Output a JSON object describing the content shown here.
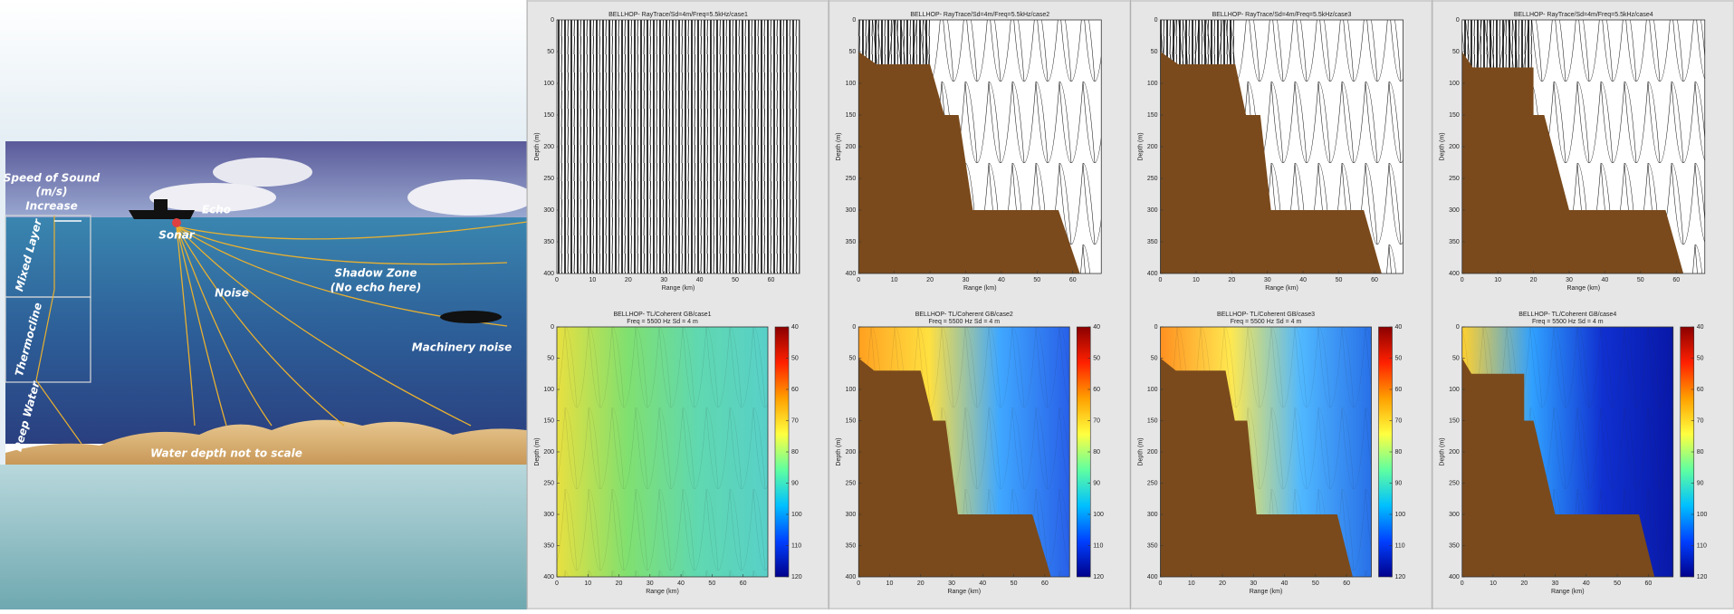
{
  "illustration": {
    "labels": [
      "Speed of Sound",
      "(m/s)",
      "Increase",
      "Sonar",
      "Echo",
      "Noise",
      "Shadow Zone",
      "(No echo here)",
      "Machinery noise",
      "Mixed Layer",
      "Thermocline",
      "Deep Water",
      "Water depth not to scale"
    ]
  },
  "depth_axis": {
    "label": "Depth (m)",
    "lim": [
      0,
      400
    ],
    "ticks": [
      0,
      50,
      100,
      150,
      200,
      250,
      300,
      350,
      400
    ]
  },
  "range_axis": {
    "label": "Range (km)",
    "lim": [
      0,
      68
    ],
    "ticks": [
      0,
      10,
      20,
      30,
      40,
      50,
      60
    ]
  },
  "colorbar": {
    "lim": [
      40,
      120
    ],
    "ticks": [
      40,
      50,
      60,
      70,
      80,
      90,
      100,
      110,
      120
    ],
    "colors": [
      "#8b0000",
      "#ff2000",
      "#ffa000",
      "#ffff40",
      "#60ffa0",
      "#00c0ff",
      "#0040ff",
      "#00008b"
    ]
  },
  "panels": [
    {
      "kind": "raytrace",
      "title": "BELLHOP- RayTrace/Sd=4m/Freq=5.5kHz/case1"
    },
    {
      "kind": "raytrace",
      "title": "BELLHOP- RayTrace/Sd=4m/Freq=5.5kHz/case2",
      "bathymetry": {
        "range": [
          0,
          5,
          20,
          24,
          28,
          32,
          56,
          62,
          68,
          68,
          0
        ],
        "depth": [
          50,
          70,
          70,
          150,
          150,
          300,
          300,
          400,
          400,
          400,
          400
        ]
      }
    },
    {
      "kind": "raytrace",
      "title": "BELLHOP- RayTrace/Sd=4m/Freq=5.5kHz/case3",
      "bathymetry": {
        "range": [
          0,
          5,
          21,
          24,
          28,
          31,
          57,
          62,
          68,
          68,
          0
        ],
        "depth": [
          50,
          70,
          70,
          150,
          150,
          300,
          300,
          400,
          400,
          400,
          400
        ]
      }
    },
    {
      "kind": "raytrace",
      "title": "BELLHOP- RayTrace/Sd=4m/Freq=5.5kHz/case4",
      "bathymetry": {
        "range": [
          0,
          3,
          20,
          20,
          23,
          30,
          57,
          62,
          68,
          68,
          0
        ],
        "depth": [
          50,
          75,
          75,
          150,
          150,
          300,
          300,
          400,
          400,
          400,
          400
        ]
      }
    },
    {
      "kind": "tl",
      "title": "BELLHOP- TL/Coherent GB/case1",
      "subtitle": "Freq = 5500 Hz    Sd = 4 m",
      "colors": [
        "#e8e040",
        "#80e070",
        "#60d8b0",
        "#58d0c8"
      ]
    },
    {
      "kind": "tl",
      "title": "BELLHOP- TL/Coherent GB/case2",
      "subtitle": "Freq = 5500 Hz    Sd = 4 m",
      "colors": [
        "#ffa020",
        "#ffe040",
        "#40a8ff",
        "#2860e8"
      ],
      "bathymetry": {
        "range": [
          0,
          5,
          20,
          24,
          28,
          32,
          56,
          62,
          68,
          68,
          0
        ],
        "depth": [
          50,
          70,
          70,
          150,
          150,
          300,
          300,
          400,
          400,
          400,
          400
        ]
      }
    },
    {
      "kind": "tl",
      "title": "BELLHOP- TL/Coherent GB/case3",
      "subtitle": "Freq = 5500 Hz    Sd = 4 m",
      "colors": [
        "#ff9020",
        "#ffe850",
        "#50b8ff",
        "#2870e8"
      ],
      "bathymetry": {
        "range": [
          0,
          5,
          21,
          24,
          28,
          31,
          57,
          62,
          68,
          68,
          0
        ],
        "depth": [
          50,
          70,
          70,
          150,
          150,
          300,
          300,
          400,
          400,
          400,
          400
        ]
      }
    },
    {
      "kind": "tl",
      "title": "BELLHOP- TL/Coherent GB/case4",
      "subtitle": "Freq = 5500 Hz    Sd = 4 m",
      "colors": [
        "#ffd030",
        "#30a0ff",
        "#1030d0",
        "#0818a8"
      ],
      "bathymetry": {
        "range": [
          0,
          3,
          20,
          20,
          23,
          30,
          57,
          62,
          68,
          68,
          0
        ],
        "depth": [
          50,
          75,
          75,
          150,
          150,
          300,
          300,
          400,
          400,
          400,
          400
        ]
      }
    }
  ]
}
